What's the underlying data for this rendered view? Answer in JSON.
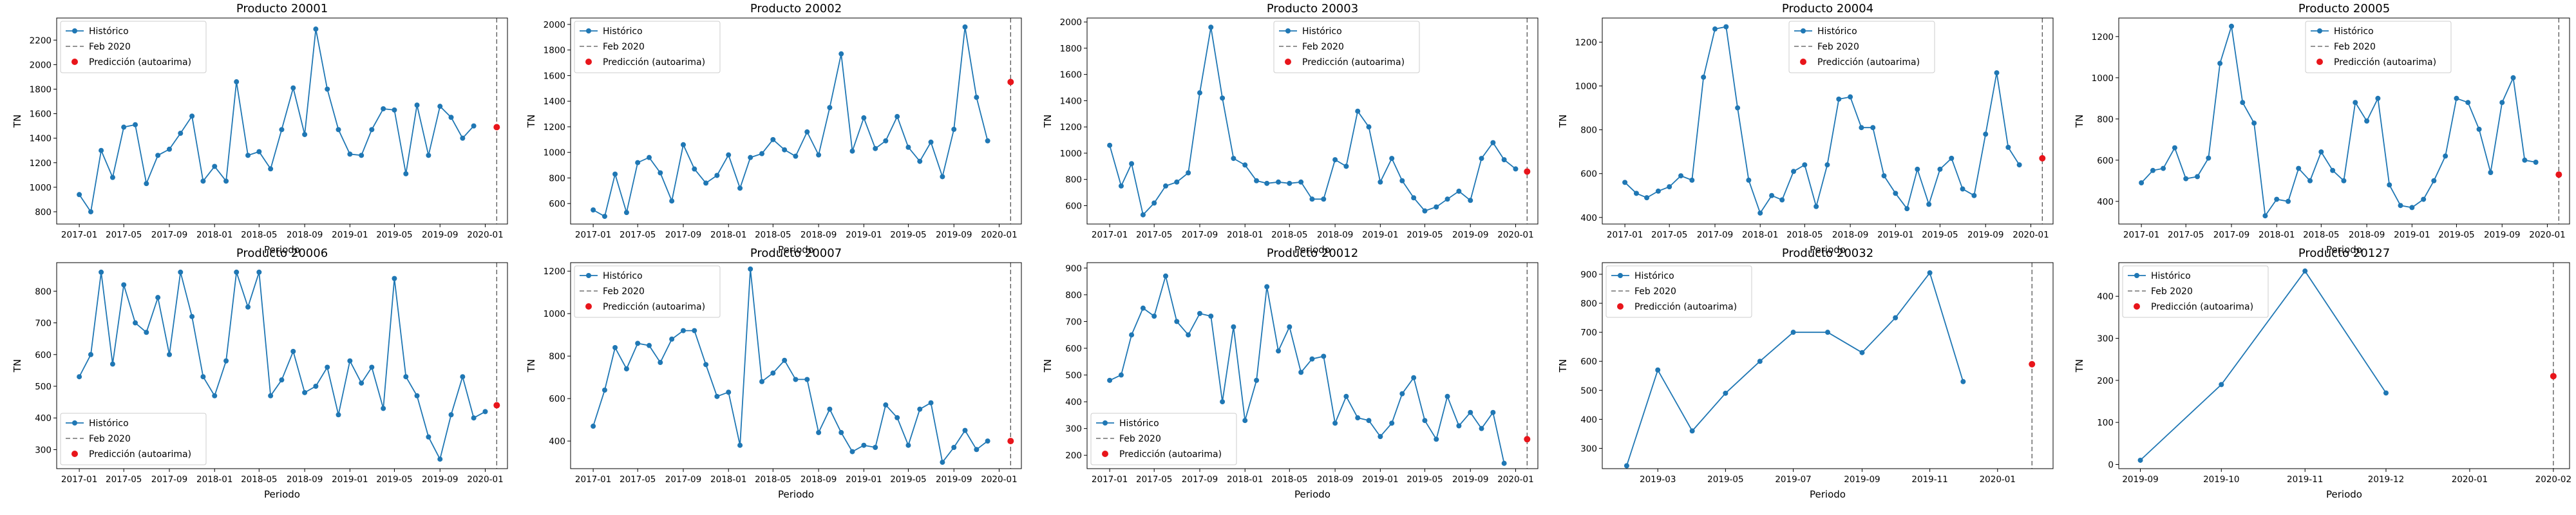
{
  "colors": {
    "series": "#1f77b4",
    "prediction": "#e8151b",
    "vline": "#555555",
    "axes": "#000000"
  },
  "legend_labels": {
    "historico": "Histórico",
    "feb": "Feb 2020",
    "pred": "Predicción (autoarima)"
  },
  "chart_data": [
    {
      "type": "line",
      "title": "Producto 20001",
      "xlabel": "Periodo",
      "ylabel": "TN",
      "x_start": "2017-01",
      "x_range": [
        "2016-11",
        "2020-03"
      ],
      "ylim": [
        700,
        2380
      ],
      "yticks": [
        800,
        1000,
        1200,
        1400,
        1600,
        1800,
        2000,
        2200
      ],
      "xticks": [
        "2017-01",
        "2017-05",
        "2017-09",
        "2018-01",
        "2018-05",
        "2018-09",
        "2019-01",
        "2019-05",
        "2019-09",
        "2020-01"
      ],
      "values": [
        940,
        800,
        1300,
        1080,
        1490,
        1510,
        1030,
        1260,
        1310,
        1440,
        1580,
        1050,
        1170,
        1050,
        1860,
        1260,
        1290,
        1150,
        1470,
        1810,
        1430,
        2290,
        1800,
        1470,
        1270,
        1260,
        1470,
        1640,
        1630,
        1110,
        1670,
        1260,
        1660,
        1570,
        1400,
        1500
      ],
      "feb_line": "2020-02",
      "prediction": {
        "x": "2020-02",
        "y": 1490
      },
      "legend": "top-left"
    },
    {
      "type": "line",
      "title": "Producto 20002",
      "xlabel": "Periodo",
      "ylabel": "TN",
      "x_start": "2017-01",
      "x_range": [
        "2016-11",
        "2020-03"
      ],
      "ylim": [
        440,
        2050
      ],
      "yticks": [
        600,
        800,
        1000,
        1200,
        1400,
        1600,
        1800,
        2000
      ],
      "xticks": [
        "2017-01",
        "2017-05",
        "2017-09",
        "2018-01",
        "2018-05",
        "2018-09",
        "2019-01",
        "2019-05",
        "2019-09",
        "2020-01"
      ],
      "values": [
        550,
        500,
        830,
        530,
        920,
        960,
        840,
        620,
        1060,
        870,
        760,
        820,
        980,
        720,
        960,
        990,
        1100,
        1020,
        970,
        1160,
        980,
        1350,
        1770,
        1010,
        1270,
        1030,
        1090,
        1280,
        1040,
        930,
        1080,
        810,
        1180,
        1980,
        1430,
        1090
      ],
      "feb_line": "2020-02",
      "prediction": {
        "x": "2020-02",
        "y": 1550
      },
      "legend": "top-left"
    },
    {
      "type": "line",
      "title": "Producto 20003",
      "xlabel": "Periodo",
      "ylabel": "TN",
      "x_start": "2017-01",
      "x_range": [
        "2016-11",
        "2020-03"
      ],
      "ylim": [
        460,
        2030
      ],
      "yticks": [
        600,
        800,
        1000,
        1200,
        1400,
        1600,
        1800,
        2000
      ],
      "xticks": [
        "2017-01",
        "2017-05",
        "2017-09",
        "2018-01",
        "2018-05",
        "2018-09",
        "2019-01",
        "2019-05",
        "2019-09",
        "2020-01"
      ],
      "values": [
        1060,
        750,
        920,
        530,
        620,
        750,
        780,
        850,
        1460,
        1960,
        1420,
        960,
        910,
        790,
        770,
        780,
        770,
        780,
        650,
        650,
        950,
        900,
        1320,
        1200,
        780,
        960,
        790,
        660,
        560,
        590,
        650,
        710,
        640,
        960,
        1080,
        950,
        880
      ],
      "feb_line": "2020-02",
      "prediction": {
        "x": "2020-02",
        "y": 860
      },
      "legend": "top-center"
    },
    {
      "type": "line",
      "title": "Producto 20004",
      "xlabel": "Periodo",
      "ylabel": "TN",
      "x_start": "2017-01",
      "x_range": [
        "2016-11",
        "2020-03"
      ],
      "ylim": [
        370,
        1310
      ],
      "yticks": [
        400,
        600,
        800,
        1000,
        1200
      ],
      "xticks": [
        "2017-01",
        "2017-05",
        "2017-09",
        "2018-01",
        "2018-05",
        "2018-09",
        "2019-01",
        "2019-05",
        "2019-09",
        "2020-01"
      ],
      "values": [
        560,
        510,
        490,
        520,
        540,
        590,
        570,
        1040,
        1260,
        1270,
        900,
        570,
        420,
        500,
        480,
        610,
        640,
        450,
        640,
        940,
        950,
        810,
        810,
        590,
        510,
        440,
        620,
        460,
        620,
        670,
        530,
        500,
        780,
        1060,
        720,
        640
      ],
      "feb_line": "2020-02",
      "prediction": {
        "x": "2020-02",
        "y": 670
      },
      "legend": "top-center"
    },
    {
      "type": "line",
      "title": "Producto 20005",
      "xlabel": "Periodo",
      "ylabel": "TN",
      "x_start": "2017-01",
      "x_range": [
        "2016-11",
        "2020-03"
      ],
      "ylim": [
        290,
        1290
      ],
      "yticks": [
        400,
        600,
        800,
        1000,
        1200
      ],
      "xticks": [
        "2017-01",
        "2017-05",
        "2017-09",
        "2018-01",
        "2018-05",
        "2018-09",
        "2019-01",
        "2019-05",
        "2019-09",
        "2020-01"
      ],
      "values": [
        490,
        550,
        560,
        660,
        510,
        520,
        610,
        1070,
        1250,
        880,
        780,
        330,
        410,
        400,
        560,
        500,
        640,
        550,
        500,
        880,
        790,
        900,
        480,
        380,
        370,
        410,
        500,
        620,
        900,
        880,
        750,
        540,
        880,
        1000,
        600,
        590
      ],
      "feb_line": "2020-02",
      "prediction": {
        "x": "2020-02",
        "y": 530
      },
      "legend": "top-center"
    },
    {
      "type": "line",
      "title": "Producto 20006",
      "xlabel": "Periodo",
      "ylabel": "TN",
      "x_start": "2017-01",
      "x_range": [
        "2016-11",
        "2020-03"
      ],
      "ylim": [
        240,
        890
      ],
      "yticks": [
        300,
        400,
        500,
        600,
        700,
        800
      ],
      "xticks": [
        "2017-01",
        "2017-05",
        "2017-09",
        "2018-01",
        "2018-05",
        "2018-09",
        "2019-01",
        "2019-05",
        "2019-09",
        "2020-01"
      ],
      "values": [
        530,
        600,
        860,
        570,
        820,
        700,
        670,
        780,
        600,
        860,
        720,
        530,
        470,
        580,
        860,
        750,
        860,
        470,
        520,
        610,
        480,
        500,
        560,
        410,
        580,
        510,
        560,
        430,
        840,
        530,
        470,
        340,
        270,
        410,
        530,
        400,
        420
      ],
      "feb_line": "2020-02",
      "prediction": {
        "x": "2020-02",
        "y": 440
      },
      "legend": "bottom-left"
    },
    {
      "type": "line",
      "title": "Producto 20007",
      "xlabel": "Periodo",
      "ylabel": "TN",
      "x_start": "2017-01",
      "x_range": [
        "2016-11",
        "2020-03"
      ],
      "ylim": [
        270,
        1240
      ],
      "yticks": [
        400,
        600,
        800,
        1000,
        1200
      ],
      "xticks": [
        "2017-01",
        "2017-05",
        "2017-09",
        "2018-01",
        "2018-05",
        "2018-09",
        "2019-01",
        "2019-05",
        "2019-09",
        "2020-01"
      ],
      "values": [
        470,
        640,
        840,
        740,
        860,
        850,
        770,
        880,
        920,
        920,
        760,
        610,
        630,
        380,
        1210,
        680,
        720,
        780,
        690,
        690,
        440,
        550,
        440,
        350,
        380,
        370,
        570,
        510,
        380,
        550,
        580,
        300,
        370,
        450,
        360,
        400
      ],
      "feb_line": "2020-02",
      "prediction": {
        "x": "2020-02",
        "y": 400
      },
      "legend": "top-left"
    },
    {
      "type": "line",
      "title": "Producto 20012",
      "xlabel": "Periodo",
      "ylabel": "TN",
      "x_start": "2017-01",
      "x_range": [
        "2016-11",
        "2020-03"
      ],
      "ylim": [
        150,
        920
      ],
      "yticks": [
        200,
        300,
        400,
        500,
        600,
        700,
        800,
        900
      ],
      "xticks": [
        "2017-01",
        "2017-05",
        "2017-09",
        "2018-01",
        "2018-05",
        "2018-09",
        "2019-01",
        "2019-05",
        "2019-09",
        "2020-01"
      ],
      "values": [
        480,
        500,
        650,
        750,
        720,
        870,
        700,
        650,
        730,
        720,
        400,
        680,
        330,
        480,
        830,
        590,
        680,
        510,
        560,
        570,
        320,
        420,
        340,
        330,
        270,
        320,
        430,
        490,
        330,
        260,
        420,
        310,
        360,
        300,
        360,
        170
      ],
      "feb_line": "2020-02",
      "prediction": {
        "x": "2020-02",
        "y": 260
      },
      "legend": "bottom-left"
    },
    {
      "type": "line",
      "title": "Producto 20032",
      "xlabel": "Periodo",
      "ylabel": "TN",
      "x_start": "2019-02",
      "x_range": [
        "2019-01-10",
        "2020-02-20"
      ],
      "ylim": [
        230,
        940
      ],
      "yticks": [
        300,
        400,
        500,
        600,
        700,
        800,
        900
      ],
      "xticks": [
        "2019-03",
        "2019-05",
        "2019-07",
        "2019-09",
        "2019-11",
        "2020-01"
      ],
      "values": [
        240,
        570,
        360,
        490,
        600,
        700,
        700,
        630,
        750,
        905,
        530
      ],
      "feb_line": "2020-02",
      "prediction": {
        "x": "2020-02",
        "y": 590
      },
      "legend": "top-left"
    },
    {
      "type": "line",
      "title": "Producto 20127",
      "xlabel": "Periodo",
      "ylabel": "TN",
      "x_start": "2019-09",
      "x_range": [
        "2019-08-24",
        "2020-02-07"
      ],
      "ylim": [
        -10,
        480
      ],
      "yticks": [
        0,
        100,
        200,
        300,
        400
      ],
      "xticks": [
        "2019-09",
        "2019-10",
        "2019-11",
        "2019-12",
        "2020-01",
        "2020-02"
      ],
      "values": [
        10,
        190,
        460,
        170
      ],
      "feb_line": "2020-02",
      "prediction": {
        "x": "2020-02",
        "y": 210
      },
      "legend": "top-left"
    }
  ]
}
